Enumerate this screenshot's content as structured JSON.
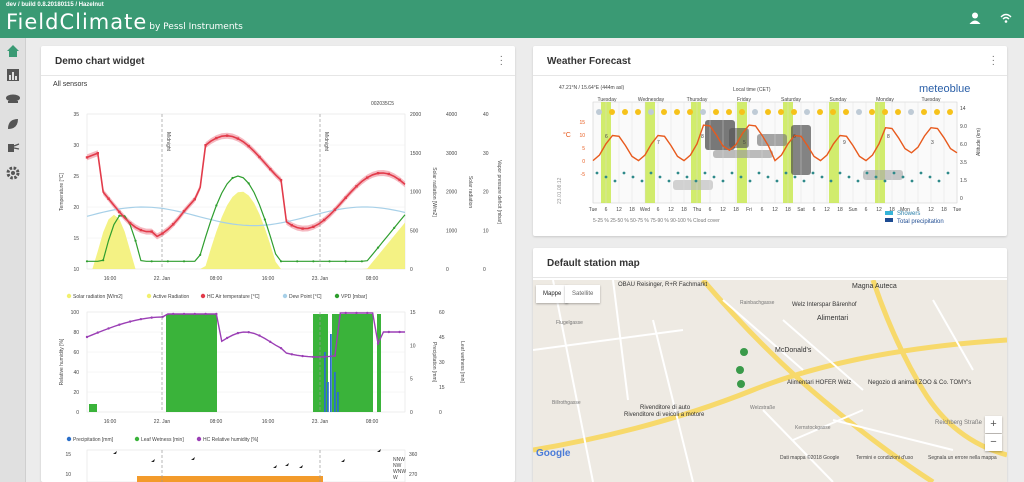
{
  "header": {
    "build": "dev / build 0.8.20180115 / Hazelnut",
    "logo_main": "FieldClimate",
    "logo_by": "by Pessl Instruments",
    "user_icon": "user-icon",
    "signal_icon": "wifi-signal-icon"
  },
  "sidebar": {
    "items": [
      {
        "icon": "home-icon"
      },
      {
        "icon": "bar-chart-icon"
      },
      {
        "icon": "weather-station-icon"
      },
      {
        "icon": "leaf-icon"
      },
      {
        "icon": "sprayer-icon"
      },
      {
        "icon": "gear-icon"
      }
    ]
  },
  "colors": {
    "brand": "#3a9a74",
    "temp": "#e23b4a",
    "solar": "#f5f07a",
    "radiation": "#3ab33a",
    "vpd": "#2e9e2e",
    "humidity": "#9b3fb5",
    "precip": "#2b6fc9"
  },
  "demo_widget": {
    "title": "Demo chart widget",
    "subtitle": "All sensors",
    "station_id": "002035C5",
    "midnight": "Midnight",
    "chart1": {
      "yleft": [
        "35",
        "30",
        "25",
        "20",
        "15",
        "10"
      ],
      "yright1": [
        "2000",
        "1500",
        "1000",
        "500",
        "0"
      ],
      "yright2": [
        "4000",
        "3000",
        "2000",
        "1000",
        "0"
      ],
      "yright3": [
        "40",
        "30",
        "20",
        "10",
        "0"
      ],
      "ylabel": "Temperature [°C]",
      "yr1label": "Solar radiation [W/m2]",
      "yr2label": "Solar radiation",
      "yr3label": "Vapor pressure deficit [mbar]",
      "xticks": [
        "16:00",
        "22. Jan",
        "08:00",
        "16:00",
        "23. Jan",
        "08:00"
      ],
      "legend": [
        "Solar radiation [W/m2]",
        "Active Radiation",
        "HC Air temperature [°C]",
        "Dew Point [°C]",
        "VPD [mbar]"
      ]
    },
    "chart2": {
      "yleft": [
        "100",
        "80",
        "60",
        "40",
        "20",
        "0"
      ],
      "yright1": [
        "15",
        "10",
        "5",
        "0"
      ],
      "yright2": [
        "60",
        "45",
        "30",
        "15",
        "0"
      ],
      "ylabel": "Relative humidity [%]",
      "yr1label": "Precipitation [mm]",
      "yr2label": "Leaf wetness [min]",
      "xticks": [
        "16:00",
        "22. Jan",
        "08:00",
        "16:00",
        "23. Jan",
        "08:00"
      ],
      "legend": [
        "Precipitation [mm]",
        "Leaf Wetness [min]",
        "HC Relative humidity [%]"
      ]
    },
    "chart3": {
      "yleft": [
        "15",
        "10"
      ],
      "yright": [
        "360",
        "270"
      ],
      "dirs": [
        "NNW",
        "NW",
        "WNW",
        "W"
      ]
    }
  },
  "weather": {
    "title": "Weather Forecast",
    "coords": "47.21°N / 15.64°E (444m asl)",
    "local_time": "Local time (CET)",
    "brand": "meteoblue",
    "days": [
      "Tuesday",
      "Wednesday",
      "Thursday",
      "Friday",
      "Saturday",
      "Sunday",
      "Monday",
      "Tuesday"
    ],
    "temp_unit": "°C",
    "temp_ticks": [
      "15",
      "10",
      "5",
      "0",
      "-5"
    ],
    "alt_label": "Altitude (km)",
    "alt_ticks": [
      "14",
      "9.0",
      "6.0",
      "3.5",
      "1.5",
      "0"
    ],
    "hours": [
      "Tue",
      "6",
      "12",
      "18",
      "Wed",
      "6",
      "12",
      "18",
      "Thu",
      "6",
      "12",
      "18",
      "Fri",
      "6",
      "12",
      "18",
      "Sat",
      "6",
      "12",
      "18",
      "Sun",
      "6",
      "12",
      "18",
      "Mon",
      "6",
      "12",
      "18",
      "Tue"
    ],
    "temp_labels": [
      "6",
      "7",
      "8",
      "5",
      "6",
      "9",
      "8",
      "3"
    ],
    "legend_cloud": "5-25 %  25-50 %  50-75 %  75-90 %  90-100 % Cloud cover",
    "legend_showers": "Showers",
    "legend_total": "Total precipitation",
    "date_stamp": "23.01.08:12"
  },
  "map": {
    "title": "Default station map",
    "btn_map": "Mappe",
    "btn_sat": "Satellite",
    "labels": [
      "OBAU Reisinger, R+R Fachmarkt",
      "Magna Auteca",
      "Welz Interspar Bärenhof",
      "Alimentari",
      "McDonald's",
      "Alimentari HOFER Welz",
      "Negozio di animali ZOO & Co. TOMY's",
      "Rivenditore di auto",
      "Rivenditore di veicoli a motore",
      "Flugelgasse",
      "Billrothgasse",
      "Rainbachgasse",
      "Kernstockgasse",
      "Reichberg Straße",
      "Welzstraße"
    ],
    "google": "Google",
    "footer": [
      "Dati mappa ©2018 Google",
      "Termini e condizioni d'uso",
      "Segnala un errore nella mappa"
    ],
    "zoom_in": "+",
    "zoom_out": "−"
  }
}
